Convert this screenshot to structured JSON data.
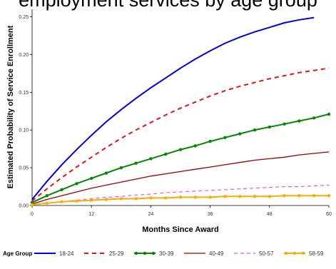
{
  "chart_data": {
    "type": "line",
    "title": "employment services by age group",
    "xlabel": "Months Since Award",
    "ylabel": "Estimated Probability of Service Enrollment",
    "xlim": [
      0,
      60
    ],
    "ylim": [
      0,
      0.26
    ],
    "x_ticks": [
      "0",
      "12",
      "24",
      "36",
      "48",
      "60"
    ],
    "y_ticks": [
      "0.00",
      "0.05",
      "0.10",
      "0.15",
      "0.20",
      "0.25"
    ],
    "x_tick_values": [
      0,
      12,
      24,
      36,
      48,
      60
    ],
    "y_tick_values": [
      0,
      0.05,
      0.1,
      0.15,
      0.2,
      0.25
    ],
    "grid": false,
    "legend_title": "Age Group",
    "legend_position": "bottom",
    "x": [
      0,
      3,
      6,
      9,
      12,
      15,
      18,
      21,
      24,
      27,
      30,
      33,
      36,
      39,
      42,
      45,
      48,
      51,
      54,
      57,
      60
    ],
    "series": [
      {
        "name": "18-24",
        "color": "#0000ee",
        "dash": "solid",
        "marker": "none",
        "width": 2,
        "x": [
          0,
          3,
          6,
          9,
          12,
          15,
          18,
          21,
          24,
          27,
          30,
          33,
          36,
          39,
          42,
          45,
          48,
          51,
          54,
          57
        ],
        "values": [
          0.008,
          0.032,
          0.054,
          0.074,
          0.093,
          0.111,
          0.127,
          0.142,
          0.156,
          0.169,
          0.182,
          0.194,
          0.205,
          0.215,
          0.223,
          0.23,
          0.236,
          0.242,
          0.246,
          0.249
        ]
      },
      {
        "name": "25-29",
        "color": "#ee1111",
        "dash": "6,5",
        "marker": "none",
        "width": 2,
        "values": [
          0.006,
          0.022,
          0.037,
          0.051,
          0.064,
          0.077,
          0.089,
          0.1,
          0.11,
          0.12,
          0.129,
          0.137,
          0.145,
          0.152,
          0.158,
          0.163,
          0.168,
          0.172,
          0.176,
          0.179,
          0.182
        ]
      },
      {
        "name": "30-39",
        "color": "#008800",
        "dash": "solid",
        "marker": "circle",
        "width": 2,
        "values": [
          0.004,
          0.013,
          0.021,
          0.029,
          0.036,
          0.043,
          0.05,
          0.056,
          0.062,
          0.068,
          0.074,
          0.079,
          0.085,
          0.09,
          0.095,
          0.1,
          0.104,
          0.108,
          0.112,
          0.116,
          0.121
        ]
      },
      {
        "name": "40-49",
        "color": "#990000",
        "dash": "solid",
        "marker": "none",
        "width": 1.3,
        "values": [
          0.002,
          0.008,
          0.013,
          0.018,
          0.023,
          0.027,
          0.031,
          0.035,
          0.039,
          0.042,
          0.045,
          0.048,
          0.051,
          0.054,
          0.057,
          0.06,
          0.062,
          0.064,
          0.067,
          0.069,
          0.071
        ]
      },
      {
        "name": "50-57",
        "color": "#ee55ee",
        "dash": "5,4",
        "marker": "none",
        "width": 1.2,
        "values": [
          0.001,
          0.003,
          0.005,
          0.007,
          0.009,
          0.011,
          0.012,
          0.014,
          0.015,
          0.017,
          0.018,
          0.019,
          0.02,
          0.021,
          0.022,
          0.023,
          0.024,
          0.025,
          0.025,
          0.026,
          0.027
        ]
      },
      {
        "name": "58-59",
        "color": "#ffaa00",
        "dash": "solid",
        "marker": "circle",
        "width": 2,
        "values": [
          0.001,
          0.003,
          0.005,
          0.006,
          0.007,
          0.008,
          0.009,
          0.009,
          0.01,
          0.01,
          0.011,
          0.011,
          0.011,
          0.012,
          0.012,
          0.012,
          0.012,
          0.013,
          0.013,
          0.013,
          0.013
        ]
      }
    ]
  }
}
